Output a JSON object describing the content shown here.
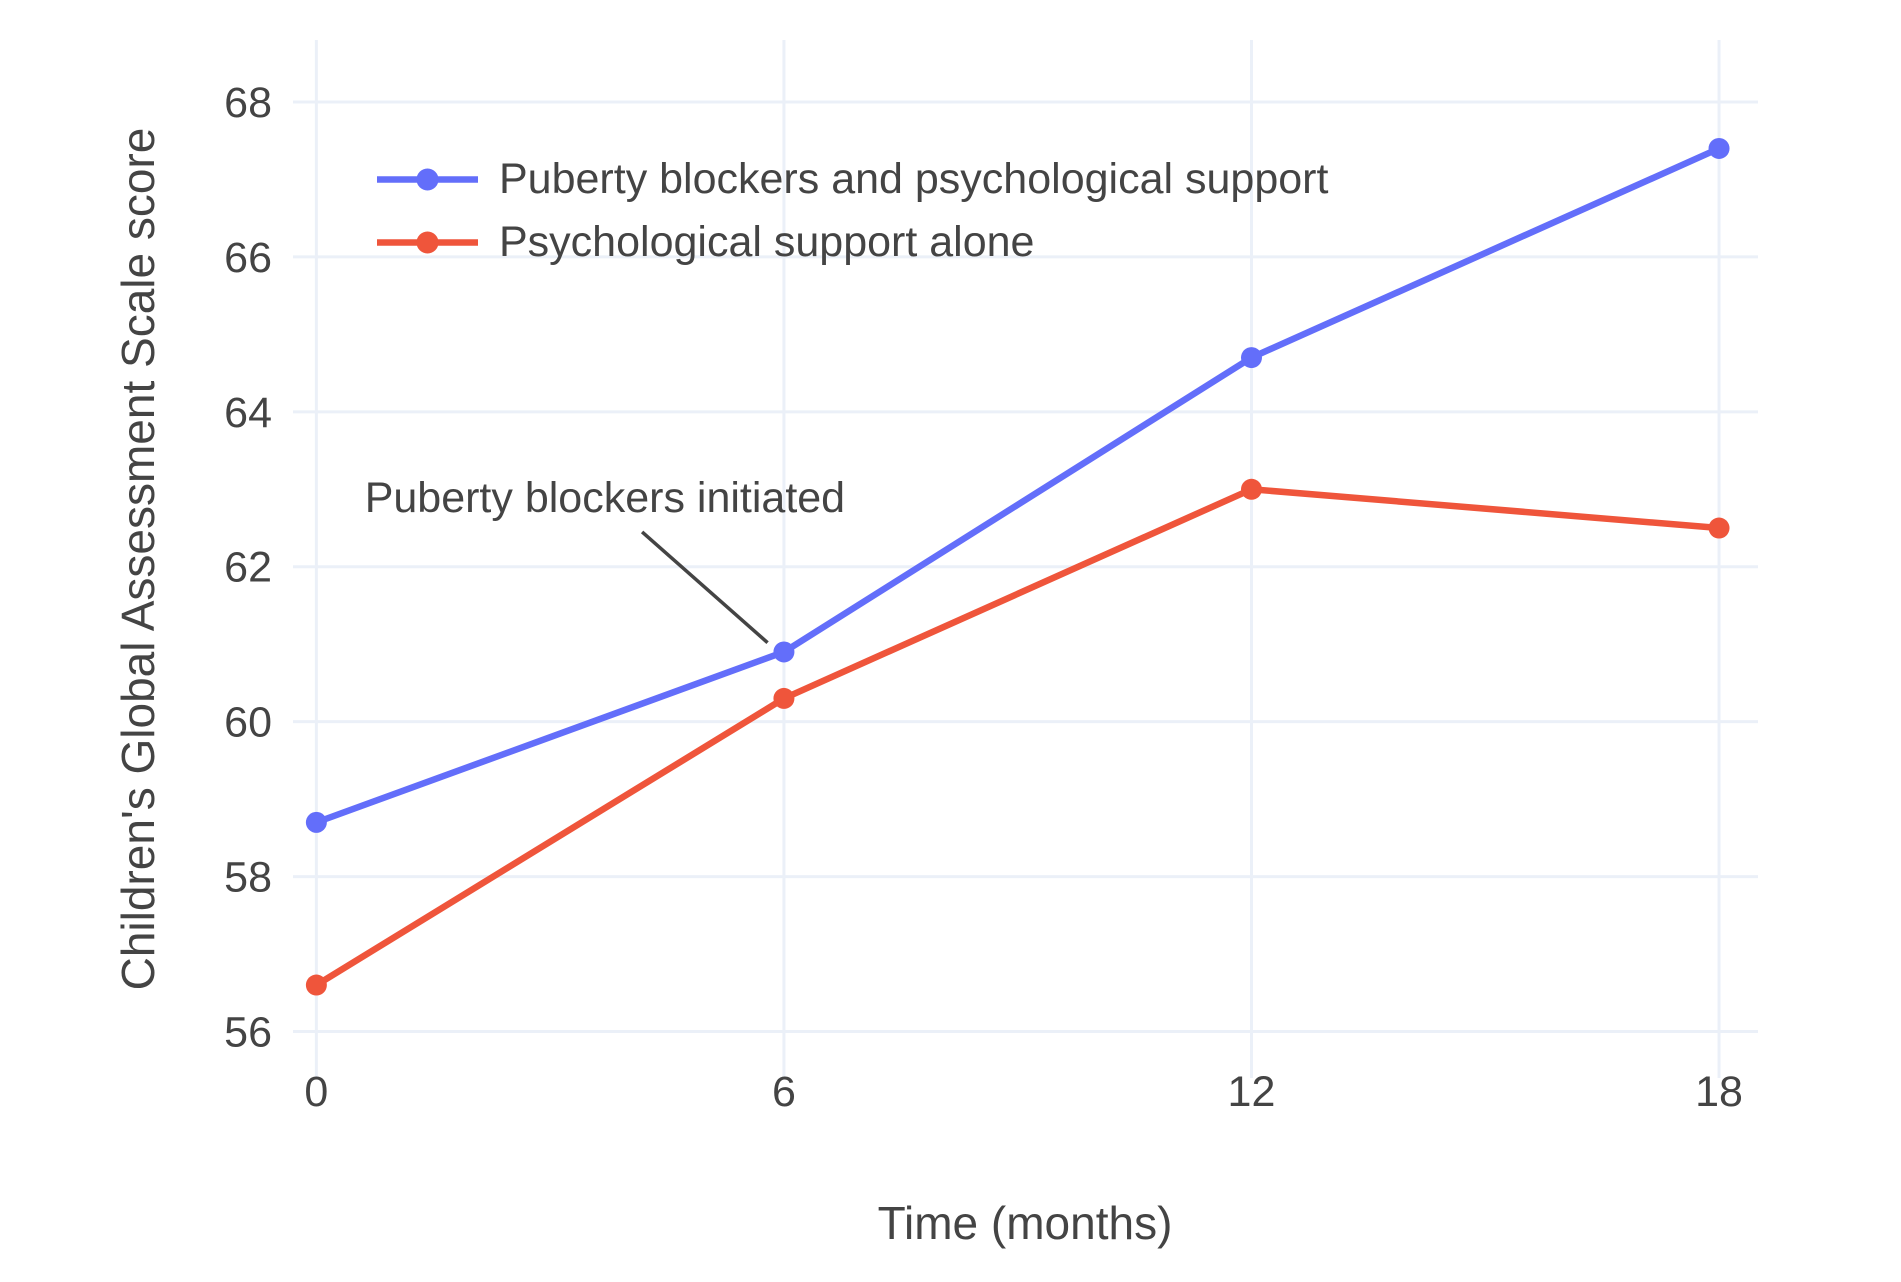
{
  "figure": {
    "background_color": "#ffffff",
    "text_color": "#444444",
    "grid_color": "#EBF0F8",
    "annotation_line_color": "#444444"
  },
  "chart_data": {
    "type": "line",
    "title": "",
    "xlabel": "Time (months)",
    "ylabel": "Children's Global Assessment Scale score",
    "x": [
      0,
      6,
      12,
      18
    ],
    "series": [
      {
        "name": "Puberty blockers and psychological support",
        "color": "#636EFA",
        "values": [
          58.7,
          60.9,
          64.7,
          67.4
        ]
      },
      {
        "name": "Psychological support alone",
        "color": "#EF553B",
        "values": [
          56.6,
          60.3,
          63.0,
          62.5
        ]
      }
    ],
    "xticks": [
      0,
      6,
      12,
      18
    ],
    "yticks": [
      56,
      58,
      60,
      62,
      64,
      66,
      68
    ],
    "xlim": [
      -0.3,
      18.5
    ],
    "ylim": [
      55.4,
      68.8
    ],
    "grid": true,
    "legend_position": "inside-top-left",
    "annotation": {
      "text": "Puberty blockers initiated",
      "points_to": {
        "x": 6,
        "y": 60.9
      },
      "line": {
        "x1": 4.18,
        "y1": 62.45,
        "x2": 5.79,
        "y2": 61.02
      },
      "text_anchor": {
        "x": 0.62,
        "y": 63.2
      }
    }
  }
}
